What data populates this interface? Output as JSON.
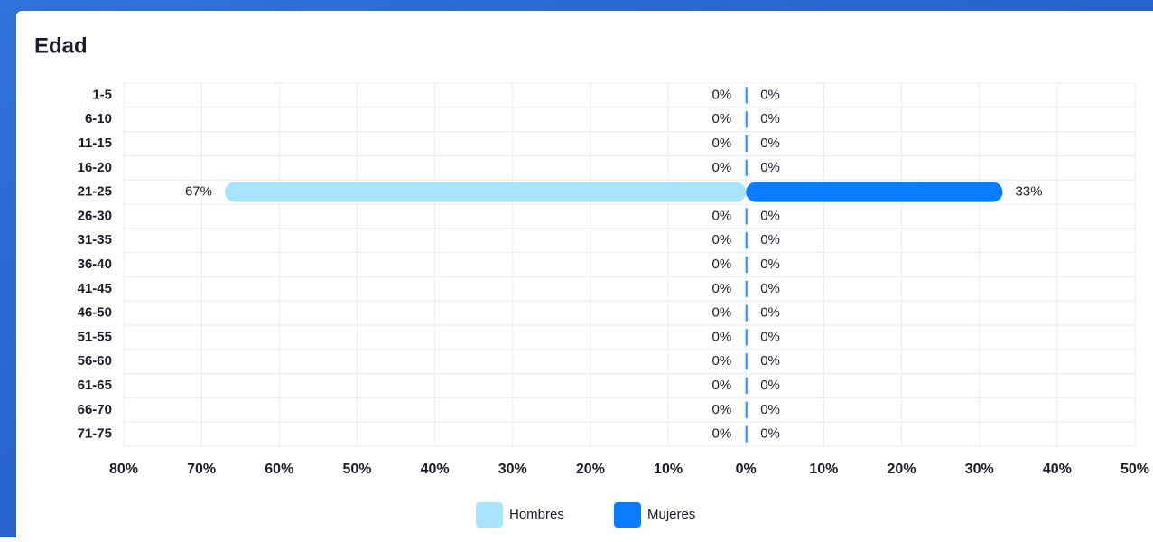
{
  "chart_data": {
    "type": "pyramid",
    "title": "Edad",
    "categories": [
      "1-5",
      "6-10",
      "11-15",
      "16-20",
      "21-25",
      "26-30",
      "31-35",
      "36-40",
      "41-45",
      "46-50",
      "51-55",
      "56-60",
      "61-65",
      "66-70",
      "71-75"
    ],
    "series": [
      {
        "name": "Hombres",
        "color": "#a8e4fb",
        "values": [
          0,
          0,
          0,
          0,
          67,
          0,
          0,
          0,
          0,
          0,
          0,
          0,
          0,
          0,
          0
        ],
        "value_labels": [
          "0%",
          "0%",
          "0%",
          "0%",
          "67%",
          "0%",
          "0%",
          "0%",
          "0%",
          "0%",
          "0%",
          "0%",
          "0%",
          "0%",
          "0%"
        ]
      },
      {
        "name": "Mujeres",
        "color": "#0a7cff",
        "values": [
          0,
          0,
          0,
          0,
          33,
          0,
          0,
          0,
          0,
          0,
          0,
          0,
          0,
          0,
          0
        ],
        "value_labels": [
          "0%",
          "0%",
          "0%",
          "0%",
          "33%",
          "0%",
          "0%",
          "0%",
          "0%",
          "0%",
          "0%",
          "0%",
          "0%",
          "0%",
          "0%"
        ]
      }
    ],
    "xlim": [
      -80,
      50
    ],
    "xticks": [
      {
        "value": -80,
        "label": "80%"
      },
      {
        "value": -70,
        "label": "70%"
      },
      {
        "value": -60,
        "label": "60%"
      },
      {
        "value": -50,
        "label": "50%"
      },
      {
        "value": -40,
        "label": "40%"
      },
      {
        "value": -30,
        "label": "30%"
      },
      {
        "value": -20,
        "label": "20%"
      },
      {
        "value": -10,
        "label": "10%"
      },
      {
        "value": 0,
        "label": "0%"
      },
      {
        "value": 10,
        "label": "10%"
      },
      {
        "value": 20,
        "label": "20%"
      },
      {
        "value": 30,
        "label": "30%"
      },
      {
        "value": 40,
        "label": "40%"
      },
      {
        "value": 50,
        "label": "50%"
      }
    ],
    "grid": true
  }
}
